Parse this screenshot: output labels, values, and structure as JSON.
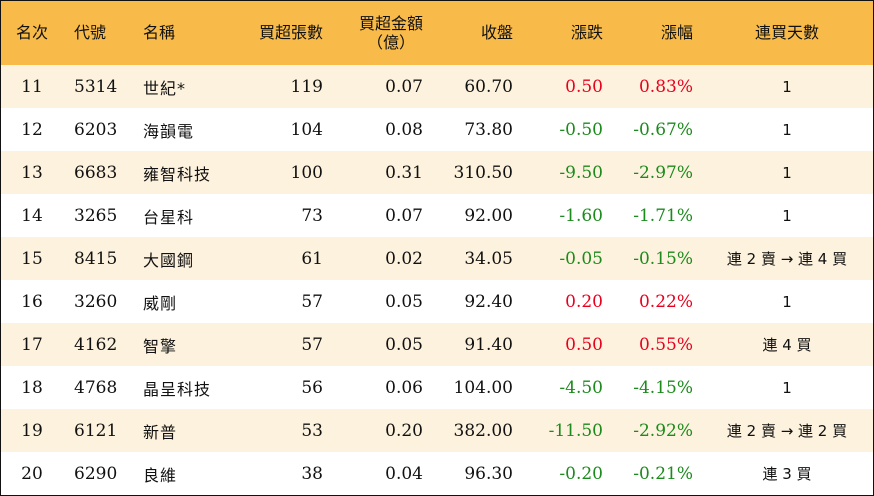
{
  "colors": {
    "header_bg": "#f8bb4a",
    "row_shade": "#fdf2dd",
    "up": "#e8001f",
    "down": "#1c8a1c"
  },
  "header": {
    "rank": "名次",
    "code": "代號",
    "name": "名稱",
    "lots": "買超張數",
    "amount_line1": "買超金額",
    "amount_line2": "（億）",
    "close": "收盤",
    "change": "漲跌",
    "pct": "漲幅",
    "streak": "連買天數"
  },
  "rows": [
    {
      "rank": "11",
      "code": "5314",
      "name": "世紀*",
      "lots": "119",
      "amount": "0.07",
      "close": "60.70",
      "change": "0.50",
      "pct": "0.83%",
      "streak": "1",
      "dir": "up"
    },
    {
      "rank": "12",
      "code": "6203",
      "name": "海韻電",
      "lots": "104",
      "amount": "0.08",
      "close": "73.80",
      "change": "-0.50",
      "pct": "-0.67%",
      "streak": "1",
      "dir": "down"
    },
    {
      "rank": "13",
      "code": "6683",
      "name": "雍智科技",
      "lots": "100",
      "amount": "0.31",
      "close": "310.50",
      "change": "-9.50",
      "pct": "-2.97%",
      "streak": "1",
      "dir": "down"
    },
    {
      "rank": "14",
      "code": "3265",
      "name": "台星科",
      "lots": "73",
      "amount": "0.07",
      "close": "92.00",
      "change": "-1.60",
      "pct": "-1.71%",
      "streak": "1",
      "dir": "down"
    },
    {
      "rank": "15",
      "code": "8415",
      "name": "大國鋼",
      "lots": "61",
      "amount": "0.02",
      "close": "34.05",
      "change": "-0.05",
      "pct": "-0.15%",
      "streak": "連 2 賣 → 連 4 買",
      "dir": "down"
    },
    {
      "rank": "16",
      "code": "3260",
      "name": "威剛",
      "lots": "57",
      "amount": "0.05",
      "close": "92.40",
      "change": "0.20",
      "pct": "0.22%",
      "streak": "1",
      "dir": "up"
    },
    {
      "rank": "17",
      "code": "4162",
      "name": "智擎",
      "lots": "57",
      "amount": "0.05",
      "close": "91.40",
      "change": "0.50",
      "pct": "0.55%",
      "streak": "連 4 買",
      "dir": "up"
    },
    {
      "rank": "18",
      "code": "4768",
      "name": "晶呈科技",
      "lots": "56",
      "amount": "0.06",
      "close": "104.00",
      "change": "-4.50",
      "pct": "-4.15%",
      "streak": "1",
      "dir": "down"
    },
    {
      "rank": "19",
      "code": "6121",
      "name": "新普",
      "lots": "53",
      "amount": "0.20",
      "close": "382.00",
      "change": "-11.50",
      "pct": "-2.92%",
      "streak": "連 2 賣 → 連 2 買",
      "dir": "down"
    },
    {
      "rank": "20",
      "code": "6290",
      "name": "良維",
      "lots": "38",
      "amount": "0.04",
      "close": "96.30",
      "change": "-0.20",
      "pct": "-0.21%",
      "streak": "連 3 買",
      "dir": "down"
    }
  ]
}
